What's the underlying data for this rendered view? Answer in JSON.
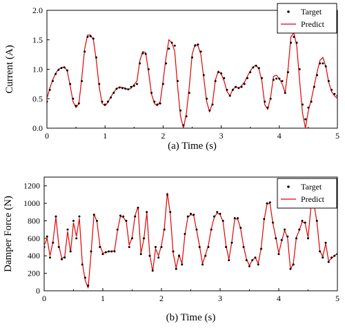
{
  "figure": {
    "background": "#ffffff"
  },
  "colors": {
    "target": "#000000",
    "predict": "#e00000",
    "axis": "#000000"
  },
  "chart_data": [
    {
      "type": "line",
      "caption": "(a) Time (s)",
      "ylabel": "Current (A)",
      "xlim": [
        0,
        5
      ],
      "ylim": [
        0,
        2.0
      ],
      "xticks": [
        0,
        1,
        2,
        3,
        4,
        5
      ],
      "xtick_labels": [
        "0",
        "1",
        "2",
        "3",
        "4",
        "5"
      ],
      "yticks": [
        0,
        0.5,
        1.0,
        1.5,
        2.0
      ],
      "ytick_labels": [
        "0.0",
        "0.5",
        "1.0",
        "1.5",
        "2.0"
      ],
      "grid": false,
      "legend_position": "top-right",
      "series": [
        {
          "name": "Target",
          "style": "points",
          "x": [
            0,
            0.05,
            0.1,
            0.15,
            0.2,
            0.25,
            0.3,
            0.35,
            0.4,
            0.45,
            0.5,
            0.55,
            0.6,
            0.65,
            0.7,
            0.75,
            0.8,
            0.85,
            0.9,
            0.95,
            1.0,
            1.05,
            1.1,
            1.15,
            1.2,
            1.25,
            1.3,
            1.35,
            1.4,
            1.45,
            1.5,
            1.55,
            1.6,
            1.65,
            1.7,
            1.75,
            1.8,
            1.85,
            1.9,
            1.95,
            2.0,
            2.05,
            2.1,
            2.15,
            2.2,
            2.25,
            2.3,
            2.35,
            2.4,
            2.45,
            2.5,
            2.55,
            2.6,
            2.65,
            2.7,
            2.75,
            2.8,
            2.85,
            2.9,
            2.95,
            3.0,
            3.05,
            3.1,
            3.15,
            3.2,
            3.25,
            3.3,
            3.35,
            3.4,
            3.45,
            3.5,
            3.55,
            3.6,
            3.65,
            3.7,
            3.75,
            3.8,
            3.85,
            3.9,
            3.95,
            4.0,
            4.05,
            4.1,
            4.15,
            4.2,
            4.25,
            4.3,
            4.35,
            4.4,
            4.45,
            4.5,
            4.55,
            4.6,
            4.65,
            4.7,
            4.75,
            4.8,
            4.85,
            4.9,
            4.95,
            5.0
          ],
          "y": [
            0.45,
            0.65,
            0.8,
            0.92,
            0.99,
            1.02,
            1.03,
            0.98,
            0.75,
            0.5,
            0.38,
            0.42,
            0.8,
            1.3,
            1.55,
            1.56,
            1.52,
            1.2,
            0.75,
            0.45,
            0.4,
            0.45,
            0.52,
            0.6,
            0.67,
            0.69,
            0.68,
            0.67,
            0.66,
            0.7,
            0.72,
            0.75,
            1.1,
            1.27,
            1.26,
            1.0,
            0.6,
            0.45,
            0.4,
            0.42,
            0.75,
            1.1,
            1.35,
            1.45,
            1.4,
            0.8,
            0.3,
            0.05,
            0.2,
            0.6,
            1.2,
            1.4,
            1.42,
            1.3,
            0.9,
            0.5,
            0.3,
            0.4,
            0.8,
            0.95,
            0.93,
            0.85,
            0.65,
            0.55,
            0.65,
            0.7,
            0.68,
            0.7,
            0.75,
            0.85,
            0.95,
            1.03,
            1.06,
            1.02,
            0.85,
            0.45,
            0.35,
            0.5,
            0.82,
            0.84,
            0.84,
            0.8,
            0.6,
            0.95,
            1.45,
            1.55,
            1.45,
            1.0,
            0.4,
            0.15,
            0.35,
            0.45,
            0.7,
            0.9,
            1.1,
            1.1,
            1.05,
            0.8,
            0.65,
            0.58,
            0.55
          ]
        },
        {
          "name": "Predict",
          "style": "line",
          "x": [
            0,
            0.05,
            0.1,
            0.15,
            0.2,
            0.25,
            0.3,
            0.35,
            0.4,
            0.45,
            0.5,
            0.55,
            0.6,
            0.65,
            0.7,
            0.75,
            0.8,
            0.85,
            0.9,
            0.95,
            1.0,
            1.05,
            1.1,
            1.15,
            1.2,
            1.25,
            1.3,
            1.35,
            1.4,
            1.45,
            1.5,
            1.55,
            1.6,
            1.65,
            1.7,
            1.75,
            1.8,
            1.85,
            1.9,
            1.95,
            2.0,
            2.05,
            2.1,
            2.15,
            2.2,
            2.25,
            2.3,
            2.35,
            2.4,
            2.45,
            2.5,
            2.55,
            2.6,
            2.65,
            2.7,
            2.75,
            2.8,
            2.85,
            2.9,
            2.95,
            3.0,
            3.05,
            3.1,
            3.15,
            3.2,
            3.25,
            3.3,
            3.35,
            3.4,
            3.45,
            3.5,
            3.55,
            3.6,
            3.65,
            3.7,
            3.75,
            3.8,
            3.85,
            3.9,
            3.95,
            4.0,
            4.05,
            4.1,
            4.15,
            4.2,
            4.25,
            4.3,
            4.35,
            4.4,
            4.45,
            4.5,
            4.55,
            4.6,
            4.65,
            4.7,
            4.75,
            4.8,
            4.85,
            4.9,
            4.95,
            5.0
          ],
          "y": [
            0.5,
            0.68,
            0.82,
            0.93,
            1.0,
            1.03,
            1.04,
            0.97,
            0.72,
            0.45,
            0.35,
            0.42,
            0.85,
            1.35,
            1.58,
            1.58,
            1.5,
            1.15,
            0.7,
            0.42,
            0.38,
            0.44,
            0.53,
            0.61,
            0.67,
            0.7,
            0.69,
            0.68,
            0.65,
            0.68,
            0.74,
            0.8,
            1.15,
            1.3,
            1.28,
            0.95,
            0.58,
            0.42,
            0.38,
            0.45,
            0.8,
            1.2,
            1.5,
            1.45,
            1.3,
            0.7,
            0.2,
            0.0,
            0.25,
            0.7,
            1.25,
            1.42,
            1.4,
            1.25,
            0.85,
            0.45,
            0.28,
            0.42,
            0.82,
            0.97,
            0.92,
            0.8,
            0.62,
            0.55,
            0.66,
            0.7,
            0.68,
            0.72,
            0.78,
            0.88,
            0.97,
            1.04,
            1.07,
            1.0,
            0.8,
            0.4,
            0.32,
            0.52,
            0.88,
            0.9,
            0.84,
            0.75,
            0.6,
            1.0,
            1.55,
            1.62,
            1.4,
            0.8,
            0.25,
            0.0,
            0.3,
            0.48,
            0.72,
            0.95,
            1.15,
            1.2,
            1.05,
            0.78,
            0.62,
            0.55,
            0.5
          ]
        }
      ]
    },
    {
      "type": "line",
      "caption": "(b) Time (s)",
      "ylabel": "Damper Force (N)",
      "xlim": [
        0,
        5
      ],
      "ylim": [
        0,
        1300
      ],
      "xticks": [
        0,
        1,
        2,
        3,
        4,
        5
      ],
      "xtick_labels": [
        "0",
        "1",
        "2",
        "3",
        "4",
        "5"
      ],
      "yticks": [
        0,
        200,
        400,
        600,
        800,
        1000,
        1200
      ],
      "ytick_labels": [
        "0",
        "200",
        "400",
        "600",
        "800",
        "1000",
        "1200"
      ],
      "grid": false,
      "legend_position": "top-right",
      "series": [
        {
          "name": "Target",
          "style": "points",
          "x": [
            0,
            0.05,
            0.1,
            0.15,
            0.2,
            0.25,
            0.3,
            0.35,
            0.4,
            0.45,
            0.5,
            0.55,
            0.6,
            0.65,
            0.7,
            0.75,
            0.8,
            0.85,
            0.9,
            0.95,
            1.0,
            1.05,
            1.1,
            1.15,
            1.2,
            1.25,
            1.3,
            1.35,
            1.4,
            1.45,
            1.5,
            1.55,
            1.6,
            1.65,
            1.7,
            1.75,
            1.8,
            1.85,
            1.9,
            1.95,
            2.0,
            2.05,
            2.1,
            2.15,
            2.2,
            2.25,
            2.3,
            2.35,
            2.4,
            2.45,
            2.5,
            2.55,
            2.6,
            2.65,
            2.7,
            2.75,
            2.8,
            2.85,
            2.9,
            2.95,
            3.0,
            3.05,
            3.1,
            3.15,
            3.2,
            3.25,
            3.3,
            3.35,
            3.4,
            3.45,
            3.5,
            3.55,
            3.6,
            3.65,
            3.7,
            3.75,
            3.8,
            3.85,
            3.9,
            3.95,
            4.0,
            4.05,
            4.1,
            4.15,
            4.2,
            4.25,
            4.3,
            4.35,
            4.4,
            4.45,
            4.5,
            4.55,
            4.6,
            4.65,
            4.7,
            4.75,
            4.8,
            4.85,
            4.9,
            4.95,
            5.0
          ],
          "y": [
            500,
            620,
            380,
            550,
            850,
            500,
            360,
            380,
            700,
            450,
            800,
            600,
            850,
            300,
            150,
            60,
            450,
            870,
            800,
            500,
            420,
            440,
            450,
            450,
            450,
            700,
            860,
            850,
            800,
            500,
            600,
            850,
            950,
            420,
            600,
            900,
            400,
            230,
            500,
            380,
            500,
            700,
            1100,
            900,
            450,
            250,
            400,
            300,
            650,
            850,
            880,
            870,
            700,
            500,
            300,
            400,
            500,
            700,
            850,
            900,
            880,
            800,
            500,
            350,
            550,
            830,
            830,
            720,
            500,
            350,
            280,
            350,
            380,
            300,
            480,
            820,
            1000,
            1010,
            780,
            600,
            420,
            580,
            700,
            620,
            250,
            300,
            600,
            700,
            800,
            780,
            600,
            980,
            1000,
            800,
            450,
            380,
            550,
            330,
            380,
            400,
            420
          ]
        },
        {
          "name": "Predict",
          "style": "line",
          "x": [
            0,
            0.05,
            0.1,
            0.15,
            0.2,
            0.25,
            0.3,
            0.35,
            0.4,
            0.45,
            0.5,
            0.55,
            0.6,
            0.65,
            0.7,
            0.75,
            0.8,
            0.85,
            0.9,
            0.95,
            1.0,
            1.05,
            1.1,
            1.15,
            1.2,
            1.25,
            1.3,
            1.35,
            1.4,
            1.45,
            1.5,
            1.55,
            1.6,
            1.65,
            1.7,
            1.75,
            1.8,
            1.85,
            1.9,
            1.95,
            2.0,
            2.05,
            2.1,
            2.15,
            2.2,
            2.25,
            2.3,
            2.35,
            2.4,
            2.45,
            2.5,
            2.55,
            2.6,
            2.65,
            2.7,
            2.75,
            2.8,
            2.85,
            2.9,
            2.95,
            3.0,
            3.05,
            3.1,
            3.15,
            3.2,
            3.25,
            3.3,
            3.35,
            3.4,
            3.45,
            3.5,
            3.55,
            3.6,
            3.65,
            3.7,
            3.75,
            3.8,
            3.85,
            3.9,
            3.95,
            4.0,
            4.05,
            4.1,
            4.15,
            4.2,
            4.25,
            4.3,
            4.35,
            4.4,
            4.45,
            4.5,
            4.55,
            4.6,
            4.65,
            4.7,
            4.75,
            4.8,
            4.85,
            4.9,
            4.95,
            5.0
          ],
          "y": [
            520,
            600,
            400,
            560,
            840,
            520,
            370,
            390,
            680,
            440,
            780,
            620,
            830,
            320,
            120,
            30,
            430,
            880,
            790,
            520,
            430,
            440,
            450,
            450,
            460,
            690,
            850,
            840,
            790,
            520,
            610,
            860,
            960,
            430,
            590,
            890,
            420,
            220,
            480,
            400,
            520,
            720,
            1120,
            880,
            430,
            260,
            410,
            310,
            640,
            840,
            870,
            860,
            690,
            510,
            310,
            410,
            520,
            710,
            840,
            890,
            870,
            790,
            520,
            360,
            560,
            820,
            820,
            710,
            510,
            360,
            290,
            350,
            380,
            310,
            490,
            810,
            990,
            1000,
            770,
            610,
            430,
            570,
            690,
            610,
            240,
            320,
            610,
            690,
            790,
            770,
            610,
            970,
            990,
            790,
            460,
            390,
            540,
            340,
            370,
            400,
            430
          ]
        }
      ]
    }
  ]
}
